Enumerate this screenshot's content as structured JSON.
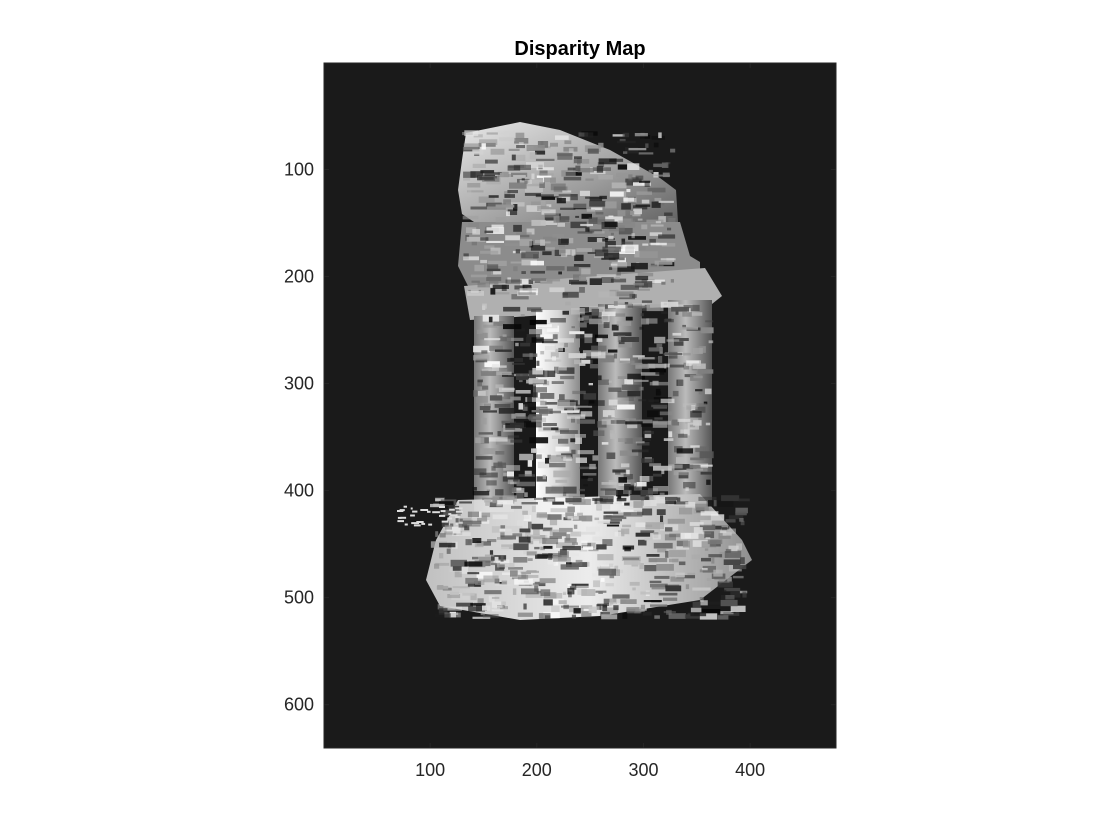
{
  "chart_data": {
    "type": "heatmap",
    "title": "Disparity Map",
    "xlabel": "",
    "ylabel": "",
    "xlim": [
      0.5,
      480.5
    ],
    "ylim": [
      0.5,
      640.5
    ],
    "y_direction": "reversed",
    "colormap": "gray",
    "background_color": "#1a1a1a",
    "grid": false,
    "x_ticks": [
      100,
      200,
      300,
      400
    ],
    "y_ticks": [
      100,
      200,
      300,
      400,
      500,
      600
    ],
    "x_tick_labels": [
      "100",
      "200",
      "300",
      "400"
    ],
    "y_tick_labels": [
      "100",
      "200",
      "300",
      "400",
      "500",
      "600"
    ],
    "subject": "temple"
  },
  "colors": {
    "figure_background": "#ffffff",
    "axes_background": "#1a1a1a",
    "axis_line": "#262626",
    "bright": "#f5f5f5",
    "mid": "#9a9a9a",
    "dark": "#3a3a3a"
  }
}
